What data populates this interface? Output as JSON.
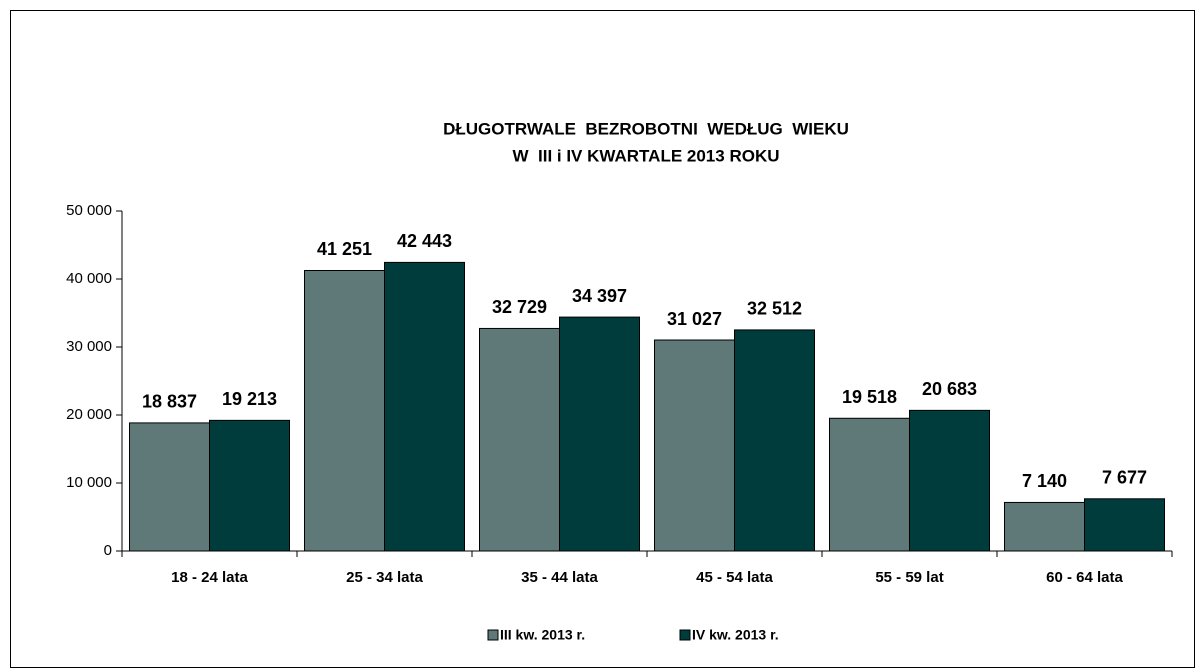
{
  "chart_data": {
    "type": "bar",
    "title": [
      "DŁUGOTRWALE  BEZROBOTNI  WEDŁUG  WIEKU",
      "W  III i IV KWARTALE 2013 ROKU"
    ],
    "categories": [
      "18 - 24 lata",
      "25 - 34 lata",
      "35 - 44 lata",
      "45 - 54 lata",
      "55 - 59 lat",
      "60 - 64 lata"
    ],
    "series": [
      {
        "name": "III kw. 2013 r.",
        "color": "#5f7878",
        "values": [
          18837,
          41251,
          32729,
          31027,
          19518,
          7140
        ],
        "value_labels": [
          "18 837",
          "41 251",
          "32 729",
          "31 027",
          "19 518",
          "7 140"
        ]
      },
      {
        "name": "IV kw. 2013 r.",
        "color": "#003c3c",
        "values": [
          19213,
          42443,
          34397,
          32512,
          20683,
          7677
        ],
        "value_labels": [
          "19 213",
          "42 443",
          "34 397",
          "32 512",
          "20 683",
          "7 677"
        ]
      }
    ],
    "ylim": [
      0,
      50000
    ],
    "yticks": [
      0,
      {
        "value": 10000,
        "label": "10 000"
      },
      {
        "value": 20000,
        "label": "20 000"
      },
      {
        "value": 30000,
        "label": "30 000"
      },
      {
        "value": 40000,
        "label": "40 000"
      },
      {
        "value": 50000,
        "label": "50 000"
      }
    ],
    "legend": "bottom"
  }
}
